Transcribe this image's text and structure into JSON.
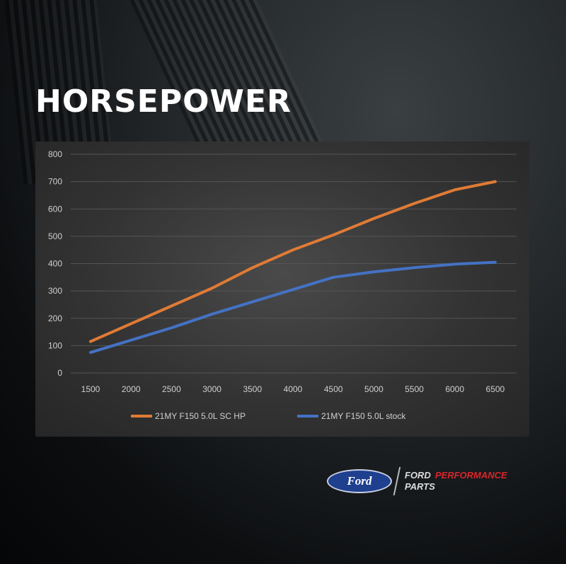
{
  "heading": "HORSEPOWER",
  "brand": {
    "ford": "Ford",
    "line1a": "FORD",
    "line1b": "PERFORMANCE",
    "line2": "PARTS"
  },
  "chart_data": {
    "type": "line",
    "title": "",
    "xlabel": "",
    "ylabel": "",
    "x": [
      1500,
      2000,
      2500,
      3000,
      3500,
      4000,
      4500,
      5000,
      5500,
      6000,
      6500
    ],
    "ylim": [
      0,
      800
    ],
    "yticks": [
      0,
      100,
      200,
      300,
      400,
      500,
      600,
      700,
      800
    ],
    "grid": true,
    "legend": "bottom",
    "series": [
      {
        "name": "21MY F150 5.0L SC HP",
        "color": "#e07b35",
        "values": [
          115,
          180,
          245,
          310,
          385,
          450,
          505,
          565,
          620,
          670,
          700
        ]
      },
      {
        "name": "21MY F150 5.0L stock",
        "color": "#4472c4",
        "values": [
          75,
          120,
          165,
          215,
          260,
          305,
          350,
          370,
          385,
          398,
          405
        ]
      }
    ]
  }
}
